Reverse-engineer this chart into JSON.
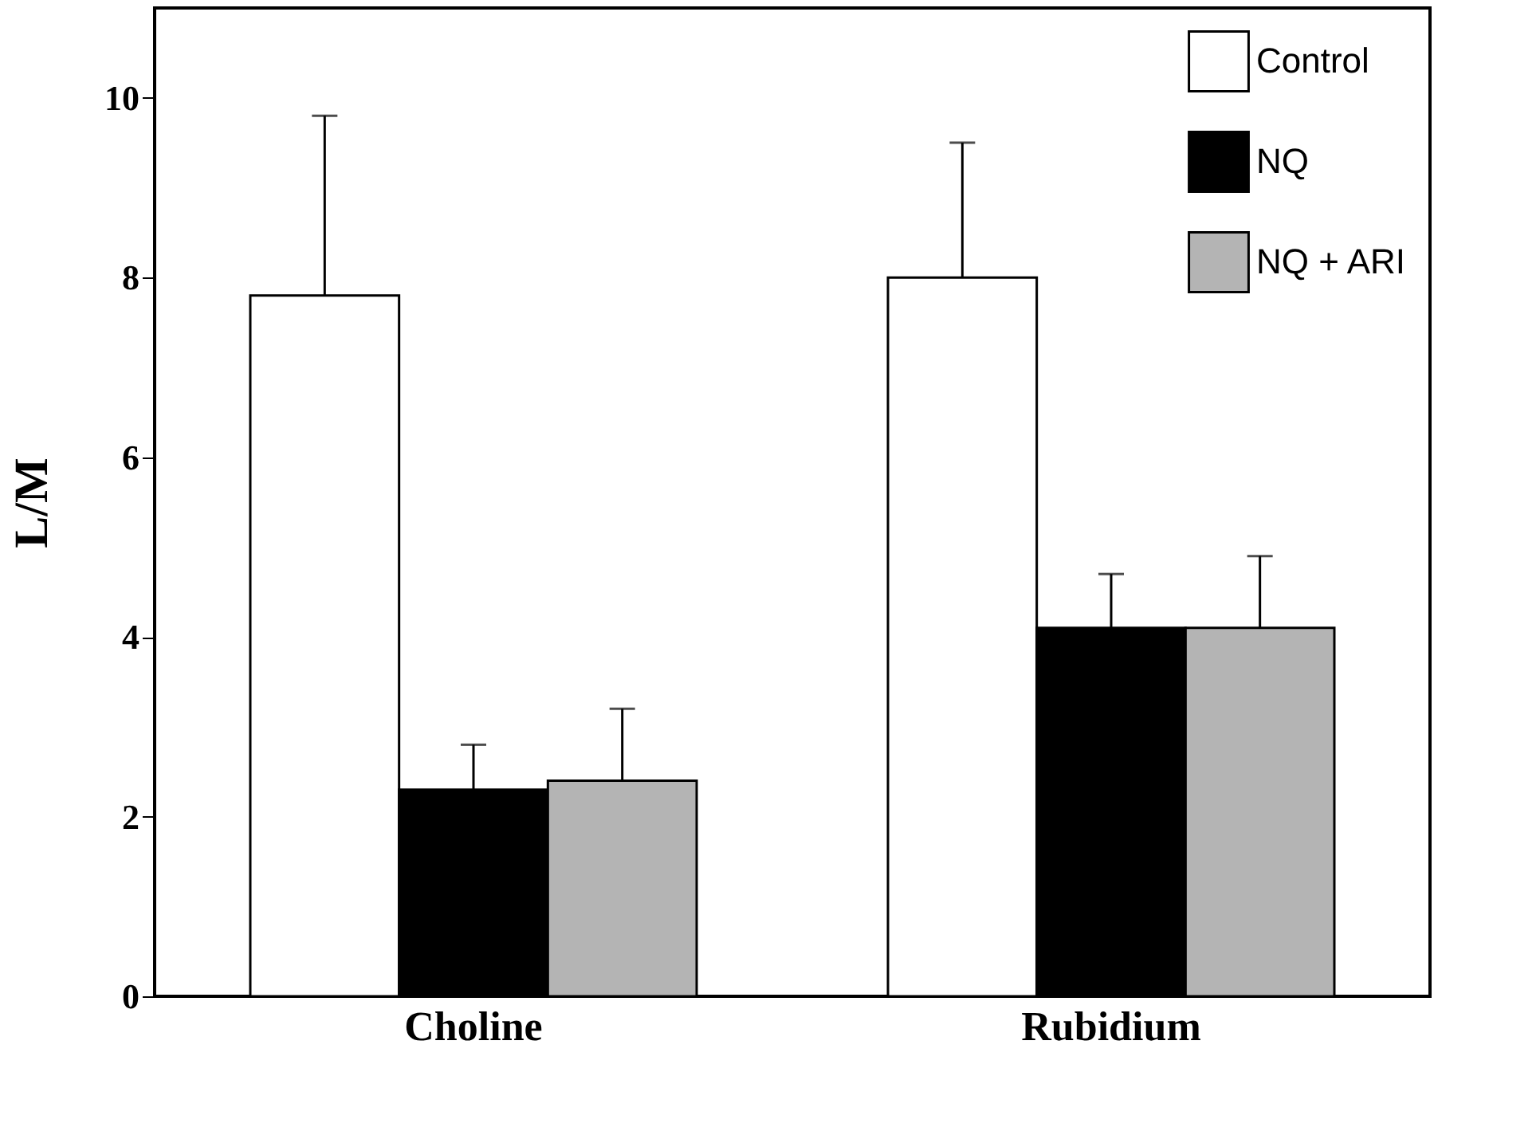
{
  "chart_data": {
    "type": "bar",
    "ylabel": "L/M",
    "categories": [
      "Choline",
      "Rubidium"
    ],
    "series": [
      {
        "name": "Control",
        "color": "#ffffff",
        "values": [
          7.8,
          8.0
        ],
        "errors": [
          [
            7.8,
            9.8
          ],
          [
            8.0,
            9.5
          ]
        ]
      },
      {
        "name": "NQ",
        "color": "#000000",
        "values": [
          2.3,
          4.1
        ],
        "errors": [
          [
            2.3,
            2.8
          ],
          [
            4.1,
            4.7
          ]
        ]
      },
      {
        "name": "NQ + ARI",
        "color": "#b4b4b4",
        "values": [
          2.4,
          4.1
        ],
        "errors": [
          [
            2.4,
            3.2
          ],
          [
            4.1,
            4.9
          ]
        ]
      }
    ],
    "ylim": [
      0,
      11
    ],
    "yticks": [
      0,
      2,
      4,
      6,
      8,
      10
    ],
    "grid": false,
    "legend": "top right"
  }
}
